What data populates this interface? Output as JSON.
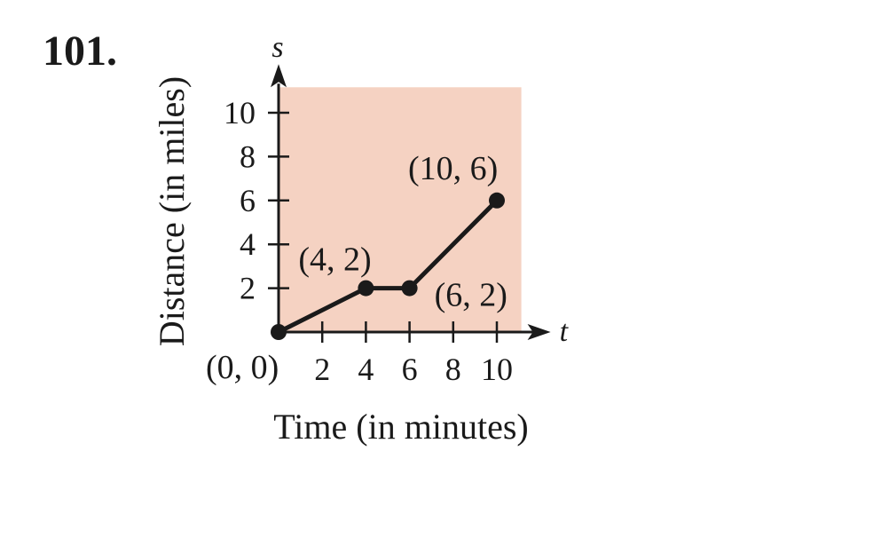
{
  "problem": {
    "number": "101."
  },
  "chart_data": {
    "type": "line",
    "xlabel": "Time (in minutes)",
    "ylabel": "Distance (in miles)",
    "x_axis_letter": "t",
    "y_axis_letter": "s",
    "xlim": [
      0,
      11
    ],
    "ylim": [
      0,
      11
    ],
    "x_ticks": [
      2,
      4,
      6,
      8,
      10
    ],
    "y_ticks": [
      2,
      4,
      6,
      8,
      10
    ],
    "x_tick_labels": [
      "2",
      "4",
      "6",
      "8",
      "10"
    ],
    "y_tick_labels": [
      "2",
      "4",
      "6",
      "8",
      "10"
    ],
    "grid": false,
    "background_color": "#f5d2c2",
    "line_color": "#1a1a1a",
    "series": [
      {
        "points": [
          {
            "x": 0,
            "y": 0,
            "label": "(0, 0)"
          },
          {
            "x": 4,
            "y": 2,
            "label": "(4, 2)"
          },
          {
            "x": 6,
            "y": 2,
            "label": "(6, 2)"
          },
          {
            "x": 10,
            "y": 6,
            "label": "(10, 6)"
          }
        ]
      }
    ]
  }
}
